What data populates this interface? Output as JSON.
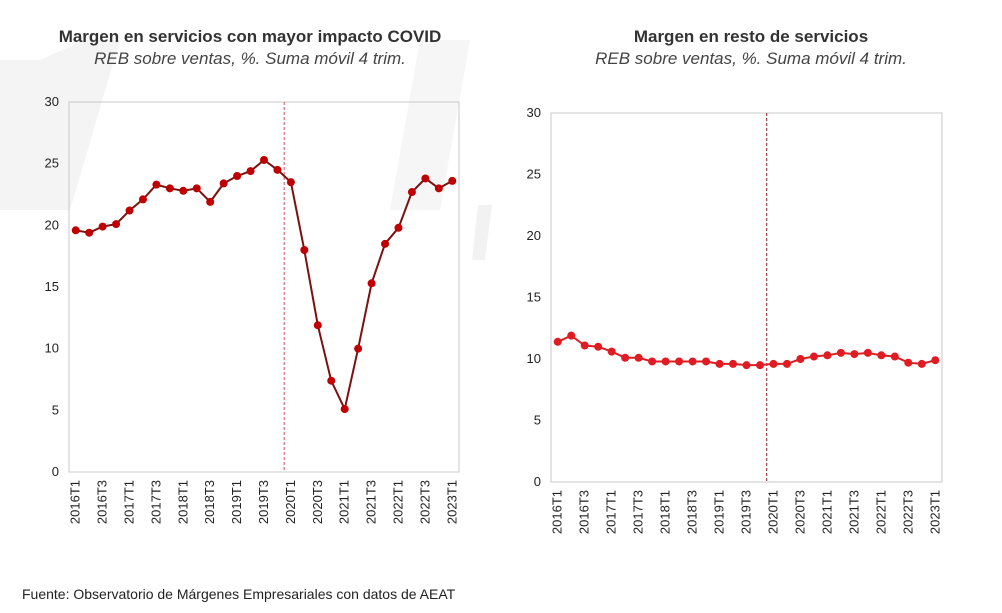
{
  "source": "Fuente: Observatorio de Márgenes Empresariales con datos de AEAT",
  "chart_data": [
    {
      "type": "line",
      "title": "Margen en servicios con mayor impacto COVID",
      "subtitle": "REB sobre ventas, %. Suma móvil 4 trim.",
      "xlabel": "",
      "ylabel": "",
      "ylim": [
        0,
        30
      ],
      "yticks": [
        0,
        5,
        10,
        15,
        20,
        25,
        30
      ],
      "x": [
        "2016T1",
        "2016T2",
        "2016T3",
        "2016T4",
        "2017T1",
        "2017T2",
        "2017T3",
        "2017T4",
        "2018T1",
        "2018T2",
        "2018T3",
        "2018T4",
        "2019T1",
        "2019T2",
        "2019T3",
        "2019T4",
        "2020T1",
        "2020T2",
        "2020T3",
        "2020T4",
        "2021T1",
        "2021T2",
        "2021T3",
        "2021T4",
        "2022T1",
        "2022T2",
        "2022T3",
        "2022T4",
        "2023T1"
      ],
      "xtick_labels": [
        "2016T1",
        "2016T3",
        "2017T1",
        "2017T3",
        "2018T1",
        "2018T3",
        "2019T1",
        "2019T3",
        "2020T1",
        "2020T3",
        "2021T1",
        "2021T3",
        "2022T1",
        "2022T3",
        "2023T1"
      ],
      "series": [
        {
          "values": [
            19.6,
            19.4,
            19.9,
            20.1,
            21.2,
            22.1,
            23.3,
            23.0,
            22.8,
            23.0,
            21.9,
            23.4,
            24.0,
            24.4,
            25.3,
            24.5,
            23.5,
            18.0,
            11.9,
            7.4,
            5.1,
            10.0,
            15.3,
            18.5,
            19.8,
            22.7,
            23.8,
            23.0,
            23.6
          ],
          "color": "#7a1212",
          "marker_color": "#c00000"
        }
      ],
      "vline": {
        "x": "2020T1",
        "color": "#d0505a",
        "style": "dashed"
      },
      "grid": false,
      "legend": "none"
    },
    {
      "type": "line",
      "title": "Margen en resto de servicios",
      "subtitle": "REB sobre ventas, %. Suma móvil 4 trim.",
      "xlabel": "",
      "ylabel": "",
      "ylim": [
        0,
        30
      ],
      "yticks": [
        0,
        5,
        10,
        15,
        20,
        25,
        30
      ],
      "x": [
        "2016T1",
        "2016T2",
        "2016T3",
        "2016T4",
        "2017T1",
        "2017T2",
        "2017T3",
        "2017T4",
        "2018T1",
        "2018T2",
        "2018T3",
        "2018T4",
        "2019T1",
        "2019T2",
        "2019T3",
        "2019T4",
        "2020T1",
        "2020T2",
        "2020T3",
        "2020T4",
        "2021T1",
        "2021T2",
        "2021T3",
        "2021T4",
        "2022T1",
        "2022T2",
        "2022T3",
        "2022T4",
        "2023T1"
      ],
      "xtick_labels": [
        "2016T1",
        "2016T3",
        "2017T1",
        "2017T3",
        "2018T1",
        "2018T3",
        "2019T1",
        "2019T3",
        "2020T1",
        "2020T3",
        "2021T1",
        "2021T3",
        "2022T1",
        "2022T3",
        "2023T1"
      ],
      "series": [
        {
          "values": [
            11.4,
            11.9,
            11.1,
            11.0,
            10.6,
            10.1,
            10.1,
            9.8,
            9.8,
            9.8,
            9.8,
            9.8,
            9.6,
            9.6,
            9.5,
            9.5,
            9.6,
            9.6,
            10.0,
            10.2,
            10.3,
            10.5,
            10.4,
            10.5,
            10.3,
            10.2,
            9.7,
            9.6,
            9.9
          ],
          "color": "#e01b22",
          "marker_color": "#e01b22"
        }
      ],
      "vline": {
        "x": "2020T1",
        "color": "#8a1a2a",
        "style": "dashed"
      },
      "grid": false,
      "legend": "none"
    }
  ]
}
